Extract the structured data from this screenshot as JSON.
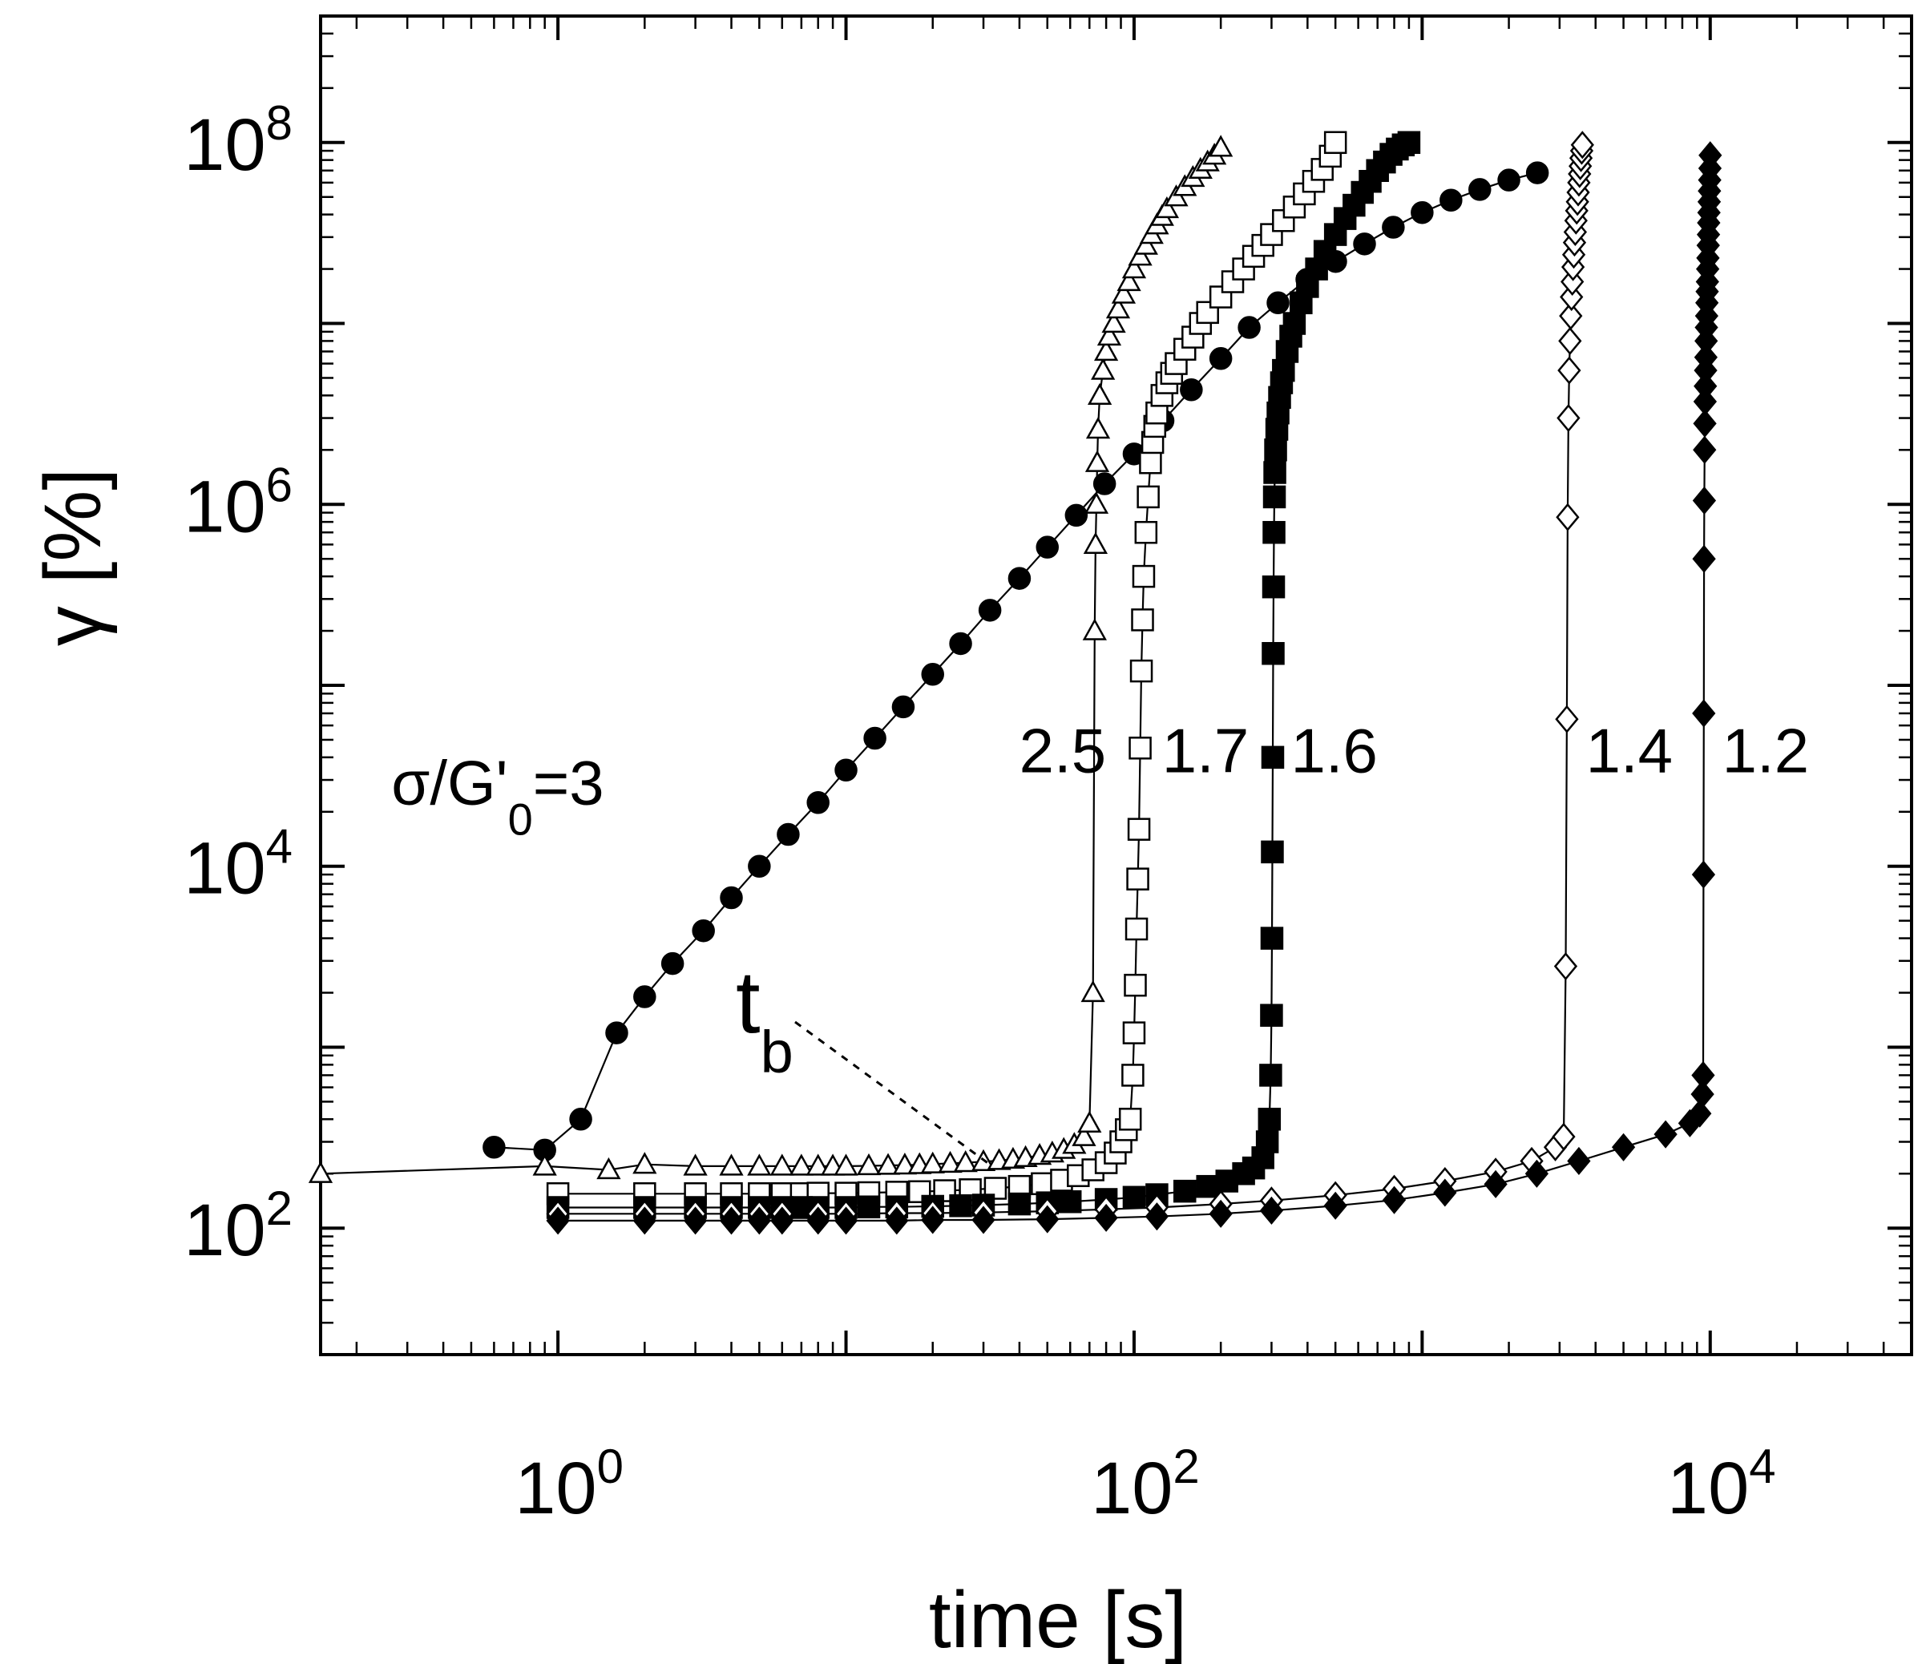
{
  "chart_data": {
    "type": "scatter",
    "xlabel": "time [s]",
    "ylabel": "γ [%]",
    "xscale": "log",
    "yscale": "log",
    "xlim": [
      0.15,
      50000
    ],
    "ylim": [
      20,
      500000000
    ],
    "xticks": [
      {
        "value": 1,
        "base": "10",
        "exp": "0"
      },
      {
        "value": 100,
        "base": "10",
        "exp": "2"
      },
      {
        "value": 10000,
        "base": "10",
        "exp": "4"
      }
    ],
    "yticks": [
      {
        "value": 100,
        "base": "10",
        "exp": "2"
      },
      {
        "value": 10000,
        "base": "10",
        "exp": "4"
      },
      {
        "value": 1000000,
        "base": "10",
        "exp": "6"
      },
      {
        "value": 100000000,
        "base": "10",
        "exp": "8"
      }
    ],
    "annotations": {
      "tb": {
        "main": "t",
        "sub": "b",
        "x": 55,
        "y": 700
      },
      "sigma": {
        "prefix": "σ/G'",
        "sub": "0",
        "suffix": "=3"
      }
    },
    "series": [
      {
        "label": "3",
        "marker": "filled-circle",
        "label_x": 0.3,
        "label_y": 45000,
        "x": [
          0.6,
          0.9,
          1.2,
          1.6,
          2.0,
          2.5,
          3.2,
          4.0,
          5.0,
          6.3,
          8.0,
          10,
          12.6,
          15.8,
          20,
          25,
          31.6,
          40,
          50,
          63,
          79,
          100,
          126,
          158,
          200,
          251,
          316,
          398,
          501,
          631,
          794,
          1000,
          1259,
          1585,
          2000,
          2512
        ],
        "y": [
          280,
          270,
          400,
          1200,
          1900,
          2900,
          4400,
          6700,
          10000,
          15000,
          22500,
          34000,
          51000,
          76000,
          115000,
          170000,
          260000,
          390000,
          580000,
          870000,
          1300000,
          1900000,
          2900000,
          4300000,
          6400000,
          9500000,
          13000000,
          17500000,
          22000000,
          27500000,
          34000000,
          41000000,
          48000000,
          55000000,
          62000000,
          68000000
        ]
      },
      {
        "label": "2.5",
        "marker": "open-triangle",
        "label_x": 80,
        "label_y": 45000,
        "x": [
          0.15,
          0.9,
          1.5,
          2,
          3,
          4,
          5,
          6,
          7,
          8,
          9,
          10,
          12,
          14,
          16,
          18,
          20,
          23,
          26,
          30,
          34,
          38,
          42,
          47,
          52,
          57,
          62,
          67,
          70,
          72,
          73,
          73.5,
          74,
          74.5,
          75,
          76,
          78,
          80,
          82,
          85,
          88,
          92,
          96,
          100,
          105,
          110,
          115,
          120,
          125,
          130,
          140,
          150,
          160,
          170,
          180,
          190,
          200
        ],
        "y": [
          200,
          220,
          210,
          225,
          220,
          220,
          220,
          220,
          220,
          220,
          220,
          220,
          221,
          222,
          223,
          224,
          226,
          228,
          230,
          233,
          236,
          240,
          245,
          252,
          260,
          272,
          290,
          320,
          380,
          2000,
          200000,
          600000,
          1000000,
          1700000,
          2600000,
          4000000,
          5500000,
          7000000,
          8500000,
          10000000,
          12000000,
          14500000,
          17000000,
          20000000,
          23500000,
          27000000,
          31000000,
          35000000,
          39000000,
          43000000,
          50000000,
          57000000,
          64000000,
          71000000,
          78000000,
          85000000,
          94000000
        ]
      },
      {
        "label": "1.7",
        "marker": "open-square",
        "label_x": 125,
        "label_y": 45000,
        "x": [
          1,
          2,
          3,
          4,
          5,
          6,
          7,
          8,
          10,
          12,
          15,
          18,
          22,
          27,
          33,
          40,
          48,
          56,
          64,
          72,
          80,
          86,
          90,
          94,
          97,
          99,
          100,
          101,
          102,
          103,
          104,
          105,
          106,
          107,
          108,
          110,
          112,
          114,
          116,
          118,
          120,
          125,
          130,
          135,
          140,
          150,
          160,
          170,
          180,
          200,
          220,
          240,
          260,
          280,
          300,
          330,
          360,
          390,
          420,
          450,
          480,
          500
        ],
        "y": [
          155,
          155,
          155,
          155,
          155,
          155,
          155,
          156,
          156,
          157,
          158,
          159,
          161,
          163,
          166,
          170,
          176,
          184,
          195,
          210,
          230,
          260,
          300,
          350,
          400,
          700,
          1200,
          2200,
          4500,
          8500,
          16000,
          45000,
          120000,
          230000,
          400000,
          700000,
          1100000,
          1700000,
          2200000,
          2700000,
          3200000,
          4000000,
          4700000,
          5300000,
          6000000,
          7200000,
          8400000,
          10000000,
          11500000,
          14000000,
          17000000,
          20000000,
          23500000,
          27000000,
          31000000,
          37000000,
          44000000,
          52000000,
          61000000,
          71000000,
          84000000,
          100000000
        ]
      },
      {
        "label": "1.6",
        "marker": "filled-square",
        "label_x": 350,
        "label_y": 45000,
        "x": [
          1,
          2,
          3,
          4,
          5,
          6,
          7,
          8,
          10,
          12,
          15,
          20,
          25,
          30,
          40,
          50,
          60,
          80,
          100,
          120,
          150,
          180,
          210,
          240,
          260,
          280,
          290,
          295,
          298,
          300,
          301,
          302,
          303,
          304,
          305,
          306,
          307,
          308,
          310,
          313,
          316,
          320,
          325,
          330,
          340,
          350,
          360,
          380,
          400,
          430,
          460,
          500,
          540,
          580,
          620,
          660,
          700,
          740,
          780,
          820,
          860,
          900
        ],
        "y": [
          130,
          130,
          130,
          130,
          130,
          130,
          130,
          130,
          130,
          131,
          131,
          132,
          133,
          134,
          136,
          138,
          140,
          144,
          148,
          153,
          160,
          170,
          182,
          200,
          215,
          245,
          300,
          400,
          700,
          1500,
          4000,
          12000,
          40000,
          150000,
          350000,
          700000,
          1100000,
          1500000,
          2000000,
          2600000,
          3200000,
          3900000,
          4700000,
          5500000,
          7000000,
          8500000,
          10000000,
          13000000,
          16000000,
          20000000,
          25000000,
          31000000,
          38000000,
          45000000,
          53000000,
          61000000,
          70000000,
          78000000,
          86000000,
          92000000,
          97000000,
          100000000
        ]
      },
      {
        "label": "1.4",
        "marker": "open-diamond",
        "label_x": 3700,
        "label_y": 45000,
        "x": [
          1,
          2,
          3,
          4,
          5,
          6,
          8,
          10,
          15,
          20,
          30,
          50,
          80,
          120,
          200,
          300,
          500,
          800,
          1200,
          1800,
          2400,
          2900,
          3100,
          3150,
          3180,
          3200,
          3220,
          3240,
          3260,
          3280,
          3300,
          3320,
          3340,
          3360,
          3380,
          3400,
          3420,
          3440,
          3460,
          3480,
          3500,
          3520,
          3540,
          3560,
          3580,
          3600
        ],
        "y": [
          120,
          120,
          120,
          120,
          120,
          120,
          120,
          120,
          121,
          121,
          122,
          124,
          127,
          130,
          136,
          142,
          152,
          165,
          182,
          205,
          235,
          280,
          320,
          2800,
          65000,
          850000,
          3000000,
          5500000,
          8000000,
          11000000,
          14000000,
          17000000,
          20500000,
          24000000,
          28000000,
          32000000,
          37000000,
          42000000,
          47000000,
          53000000,
          60000000,
          67000000,
          74000000,
          82000000,
          90000000,
          97000000
        ]
      },
      {
        "label": "1.2",
        "marker": "filled-diamond",
        "label_x": 11000,
        "label_y": 45000,
        "x": [
          1,
          2,
          3,
          4,
          5,
          6,
          8,
          10,
          15,
          20,
          30,
          50,
          80,
          120,
          200,
          300,
          500,
          800,
          1200,
          1800,
          2500,
          3500,
          5000,
          7000,
          8500,
          9200,
          9400,
          9450,
          9480,
          9500,
          9520,
          9540,
          9560,
          9580,
          9600,
          9620,
          9640,
          9660,
          9680,
          9700,
          9720,
          9740,
          9760,
          9780,
          9800,
          9820,
          9840,
          9860,
          9880,
          9900,
          9920,
          9940,
          9960,
          9980,
          10000
        ],
        "y": [
          110,
          110,
          110,
          110,
          110,
          110,
          110,
          110,
          110,
          111,
          111,
          112,
          114,
          116,
          120,
          125,
          133,
          143,
          157,
          175,
          200,
          235,
          280,
          330,
          380,
          430,
          550,
          700,
          9000,
          70000,
          500000,
          1050000,
          2000000,
          2800000,
          3700000,
          4500000,
          5500000,
          6500000,
          8000000,
          9500000,
          11000000,
          13000000,
          15000000,
          17000000,
          20000000,
          23000000,
          27000000,
          31000000,
          36000000,
          41000000,
          47000000,
          54000000,
          62000000,
          72000000,
          85000000
        ]
      }
    ]
  }
}
